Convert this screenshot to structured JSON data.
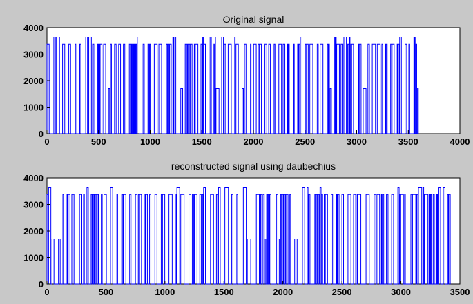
{
  "chart_data": [
    {
      "type": "line",
      "title": "Original signal",
      "xlabel": "",
      "ylabel": "",
      "xlim": [
        0,
        4000
      ],
      "ylim": [
        0,
        4000
      ],
      "x_ticks": [
        "0",
        "500",
        "1000",
        "1500",
        "2000",
        "2500",
        "3000",
        "3500",
        "4000"
      ],
      "y_ticks": [
        "0",
        "1000",
        "2000",
        "3000",
        "4000"
      ],
      "grid": false,
      "line_color": "#0000ff",
      "series": [
        {
          "x_range": [
            0,
            3600
          ],
          "baseline": 0,
          "level_low": 1700,
          "level_mid": 3370,
          "level_high": 3650,
          "note_values": "signal alternates rapidly between ~0 and 3370-3650 across samples 0-3600"
        }
      ]
    },
    {
      "type": "line",
      "title": "reconstructed signal using daubechius",
      "xlabel": "",
      "ylabel": "",
      "xlim": [
        0,
        3500
      ],
      "ylim": [
        0,
        4000
      ],
      "x_ticks": [
        "0",
        "500",
        "1000",
        "1500",
        "2000",
        "2500",
        "3000",
        "3500"
      ],
      "y_ticks": [
        "0",
        "1000",
        "2000",
        "3000",
        "4000"
      ],
      "grid": false,
      "line_color": "#0000ff",
      "series": [
        {
          "x_range": [
            0,
            3420
          ],
          "baseline": 0,
          "level_low": 1700,
          "level_mid": 3370,
          "level_high": 3650,
          "note_values": "signal alternates rapidly between ~0 and 3370-3650 across samples 0-3420"
        }
      ]
    }
  ]
}
